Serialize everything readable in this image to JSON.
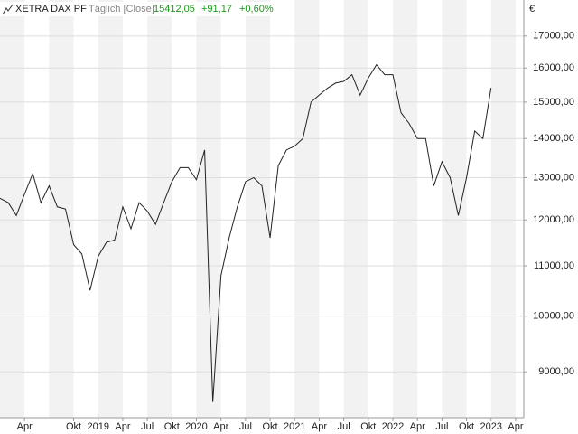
{
  "header": {
    "name": "XETRA DAX PF",
    "mode": "Täglich [Close]",
    "last": "15412,05",
    "change": "+91,17",
    "change_pct": "+0,60%"
  },
  "chart_data": {
    "type": "line",
    "log": true,
    "grid": true,
    "y_unit": "€",
    "xlim": [
      "2018-01",
      "2023-05"
    ],
    "ylim": [
      8250,
      18200
    ],
    "yticks": [
      {
        "value": 9000,
        "label": "9000,00"
      },
      {
        "value": 10000,
        "label": "10000,00"
      },
      {
        "value": 11000,
        "label": "11000,00"
      },
      {
        "value": 12000,
        "label": "12000,00"
      },
      {
        "value": 13000,
        "label": "13000,00"
      },
      {
        "value": 14000,
        "label": "14000,00"
      },
      {
        "value": 15000,
        "label": "15000,00"
      },
      {
        "value": 16000,
        "label": "16000,00"
      },
      {
        "value": 17000,
        "label": "17000,00"
      }
    ],
    "xticks": [
      {
        "value": "2018-04",
        "label": "Apr"
      },
      {
        "value": "2018-10",
        "label": "Okt"
      },
      {
        "value": "2019-01",
        "label": "2019"
      },
      {
        "value": "2019-04",
        "label": "Apr"
      },
      {
        "value": "2019-07",
        "label": "Jul"
      },
      {
        "value": "2019-10",
        "label": "Okt"
      },
      {
        "value": "2020-01",
        "label": "2020"
      },
      {
        "value": "2020-04",
        "label": "Apr"
      },
      {
        "value": "2020-07",
        "label": "Jul"
      },
      {
        "value": "2020-10",
        "label": "Okt"
      },
      {
        "value": "2021-01",
        "label": "2021"
      },
      {
        "value": "2021-04",
        "label": "Apr"
      },
      {
        "value": "2021-07",
        "label": "Jul"
      },
      {
        "value": "2021-10",
        "label": "Okt"
      },
      {
        "value": "2022-01",
        "label": "2022"
      },
      {
        "value": "2022-04",
        "label": "Apr"
      },
      {
        "value": "2022-07",
        "label": "Jul"
      },
      {
        "value": "2022-10",
        "label": "Okt"
      },
      {
        "value": "2023-01",
        "label": "2023"
      },
      {
        "value": "2023-04",
        "label": "Apr"
      }
    ],
    "series": [
      {
        "name": "XETRA DAX PF",
        "color": "#222222",
        "x": [
          "2018-01",
          "2018-02",
          "2018-03",
          "2018-04",
          "2018-05",
          "2018-06",
          "2018-07",
          "2018-08",
          "2018-09",
          "2018-10",
          "2018-11",
          "2018-12",
          "2019-01",
          "2019-02",
          "2019-03",
          "2019-04",
          "2019-05",
          "2019-06",
          "2019-07",
          "2019-08",
          "2019-09",
          "2019-10",
          "2019-11",
          "2019-12",
          "2020-01",
          "2020-02",
          "2020-03",
          "2020-04",
          "2020-05",
          "2020-06",
          "2020-07",
          "2020-08",
          "2020-09",
          "2020-10",
          "2020-11",
          "2020-12",
          "2021-01",
          "2021-02",
          "2021-03",
          "2021-04",
          "2021-05",
          "2021-06",
          "2021-07",
          "2021-08",
          "2021-09",
          "2021-10",
          "2021-11",
          "2021-12",
          "2022-01",
          "2022-02",
          "2022-03",
          "2022-04",
          "2022-05",
          "2022-06",
          "2022-07",
          "2022-08",
          "2022-09",
          "2022-10",
          "2022-11",
          "2022-12",
          "2023-01"
        ],
        "values": [
          12500,
          12400,
          12100,
          12600,
          13100,
          12400,
          12800,
          12300,
          12250,
          11450,
          11250,
          10500,
          11200,
          11500,
          11550,
          12300,
          11800,
          12400,
          12200,
          11900,
          12400,
          12900,
          13250,
          13250,
          12950,
          13700,
          8500,
          10800,
          11600,
          12300,
          12900,
          13000,
          12800,
          11600,
          13300,
          13700,
          13800,
          14000,
          15000,
          15200,
          15400,
          15550,
          15600,
          15800,
          15200,
          15700,
          16100,
          15800,
          15800,
          14700,
          14400,
          14000,
          14000,
          12800,
          13400,
          13000,
          12100,
          13000,
          14200,
          14000,
          15412.05
        ]
      }
    ]
  }
}
